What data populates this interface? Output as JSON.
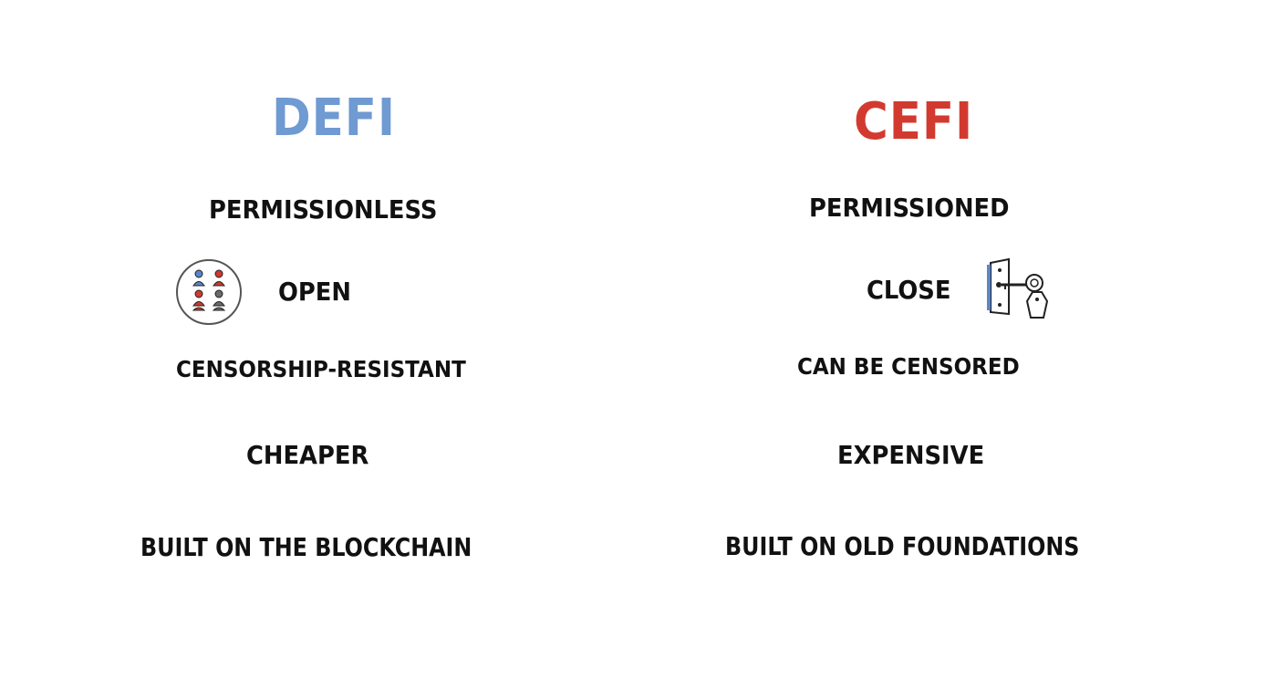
{
  "colors": {
    "defi": "#6f9ad2",
    "cefi": "#d23a30",
    "text": "#111111",
    "person_blue": "#5a86c8",
    "person_red": "#cf3a30",
    "person_gray": "#6a6a6a"
  },
  "defi": {
    "title": "DEFI",
    "items": {
      "permissionless": "PERMISSIONLESS",
      "open": "OPEN",
      "censorship": "CENSORSHIP-RESISTANT",
      "cost": "CHEAPER",
      "built": "BUILT ON THE BLOCKCHAIN"
    },
    "icon": "people-circle-icon"
  },
  "cefi": {
    "title": "CEFI",
    "items": {
      "permissioned": "PERMISSIONED",
      "close": "CLOSE",
      "censored": "CAN BE CENSORED",
      "cost": "EXPENSIVE",
      "built": "BUILT ON OLD FOUNDATIONS"
    },
    "icon": "lock-key-icon"
  }
}
